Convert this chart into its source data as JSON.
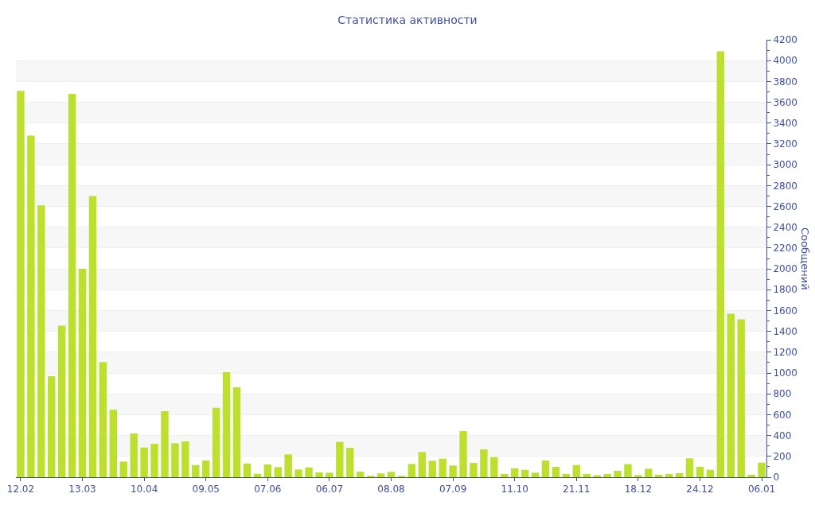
{
  "chart_data": {
    "type": "bar",
    "title": "Статистика активности",
    "ylabel": "Сообщений",
    "categories": [
      "12.02",
      null,
      null,
      null,
      null,
      null,
      "13.03",
      null,
      null,
      null,
      null,
      null,
      "10.04",
      null,
      null,
      null,
      null,
      null,
      "09.05",
      null,
      null,
      null,
      null,
      null,
      "07.06",
      null,
      null,
      null,
      null,
      null,
      "06.07",
      null,
      null,
      null,
      null,
      null,
      "08.08",
      null,
      null,
      null,
      null,
      null,
      "07.09",
      null,
      null,
      null,
      null,
      null,
      "11.10",
      null,
      null,
      null,
      null,
      null,
      "21.11",
      null,
      null,
      null,
      null,
      null,
      "18.12",
      null,
      null,
      null,
      null,
      null,
      "24.12",
      null,
      null,
      null,
      null,
      null,
      "06.01"
    ],
    "values": [
      3710,
      3280,
      2610,
      970,
      1455,
      3680,
      2000,
      2700,
      1105,
      648,
      150,
      420,
      285,
      321,
      634,
      326,
      344,
      117,
      160,
      667,
      1008,
      863,
      131,
      33,
      122,
      97,
      219,
      74,
      94,
      46,
      43,
      339,
      282,
      53,
      13,
      36,
      51,
      13,
      127,
      242,
      158,
      178,
      112,
      443,
      137,
      267,
      193,
      31,
      84,
      71,
      43,
      160,
      99,
      31,
      117,
      31,
      18,
      31,
      61,
      125,
      20,
      81,
      23,
      31,
      38,
      181,
      99,
      71,
      4090,
      1570,
      1515,
      23,
      140
    ],
    "color": "#bde02f",
    "ylim": [
      0,
      4200
    ],
    "yticks": [
      0,
      200,
      400,
      600,
      800,
      1000,
      1200,
      1400,
      1600,
      1800,
      2000,
      2200,
      2400,
      2600,
      2800,
      3000,
      3200,
      3400,
      3600,
      3800,
      4000,
      4200
    ],
    "grid": "y"
  }
}
